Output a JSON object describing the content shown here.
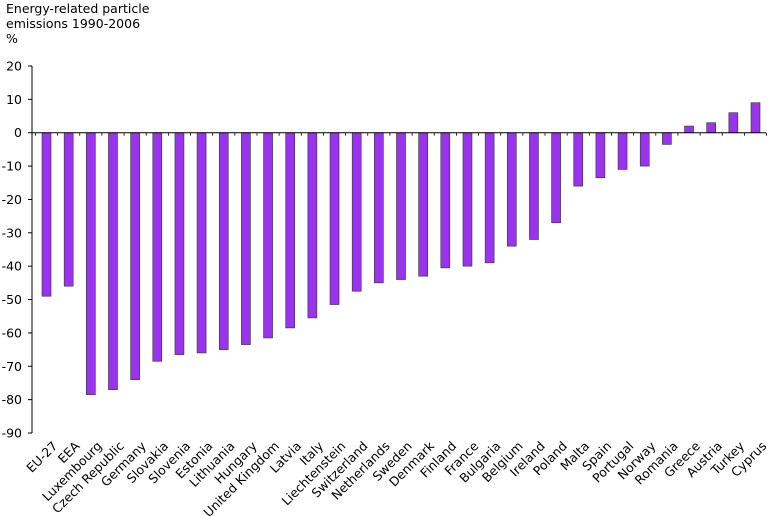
{
  "chart_data": {
    "type": "bar",
    "title": "",
    "ylabel_lines": [
      "Energy-related particle",
      "emissions 1990-2006",
      "%"
    ],
    "xlabel": "",
    "ylim": [
      -90,
      20
    ],
    "yticks": [
      20,
      10,
      0,
      -10,
      -20,
      -30,
      -40,
      -50,
      -60,
      -70,
      -80,
      -90
    ],
    "grid": false,
    "bar_color": "#9933ee",
    "categories": [
      "EU-27",
      "EEA",
      "Luxembourg",
      "Czech Republic",
      "Germany",
      "Slovakia",
      "Slovenia",
      "Estonia",
      "Lithuania",
      "Hungary",
      "United Kingdom",
      "Latvia",
      "Italy",
      "Liechtenstein",
      "Switzerland",
      "Netherlands",
      "Sweden",
      "Denmark",
      "Finland",
      "France",
      "Bulgaria",
      "Belgium",
      "Ireland",
      "Poland",
      "Malta",
      "Spain",
      "Portugal",
      "Norway",
      "Romania",
      "Greece",
      "Austria",
      "Turkey",
      "Cyprus"
    ],
    "values": [
      -49,
      -46,
      -78.5,
      -77,
      -74,
      -68.5,
      -66.5,
      -66,
      -65,
      -63.5,
      -61.5,
      -58.5,
      -55.5,
      -51.5,
      -47.5,
      -45,
      -44,
      -43,
      -40.5,
      -40,
      -39,
      -34,
      -32,
      -27,
      -16,
      -13.5,
      -11,
      -10,
      -3.5,
      2,
      3,
      6,
      9
    ]
  }
}
